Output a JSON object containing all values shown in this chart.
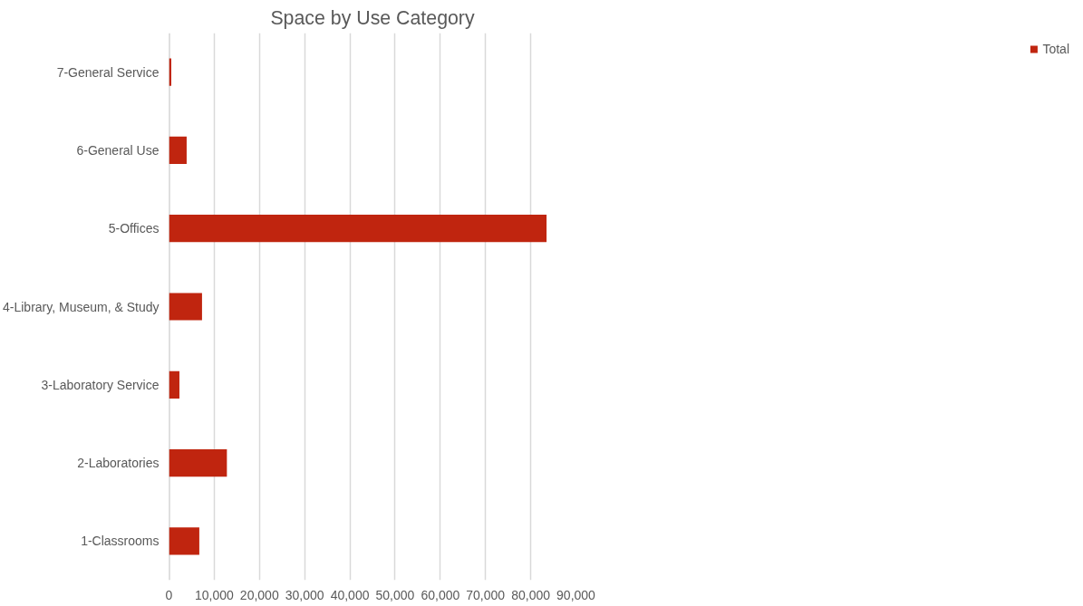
{
  "chart_data": {
    "type": "bar",
    "orientation": "horizontal",
    "title": "Space by Use Category",
    "categories": [
      "7-General Service",
      "6-General Use",
      "5-Offices",
      "4-Library, Museum, & Study",
      "3-Laboratory Service",
      "2-Laboratories",
      "1-Classrooms"
    ],
    "series": [
      {
        "name": "Total",
        "color": "#c0250f",
        "values": [
          500,
          3900,
          83500,
          7300,
          2300,
          12800,
          6700
        ]
      }
    ],
    "xlim": [
      0,
      90000
    ],
    "xticks": [
      {
        "value": 0,
        "label": "0"
      },
      {
        "value": 10000,
        "label": "10,000"
      },
      {
        "value": 20000,
        "label": "20,000"
      },
      {
        "value": 30000,
        "label": "30,000"
      },
      {
        "value": 40000,
        "label": "40,000"
      },
      {
        "value": 50000,
        "label": "50,000"
      },
      {
        "value": 60000,
        "label": "60,000"
      },
      {
        "value": 70000,
        "label": "70,000"
      },
      {
        "value": 80000,
        "label": "80,000"
      },
      {
        "value": 90000,
        "label": "90,000"
      }
    ],
    "grid": "x",
    "legend": "right"
  }
}
